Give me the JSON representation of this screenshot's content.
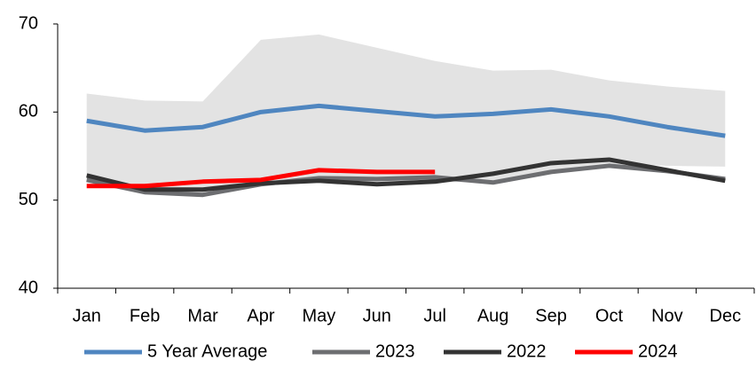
{
  "chart_data": {
    "type": "line",
    "categories": [
      "Jan",
      "Feb",
      "Mar",
      "Apr",
      "May",
      "Jun",
      "Jul",
      "Aug",
      "Sep",
      "Oct",
      "Nov",
      "Dec"
    ],
    "band": {
      "color": "#e3e3e3",
      "upper": [
        62.1,
        61.3,
        61.2,
        68.2,
        68.8,
        67.3,
        65.8,
        64.7,
        64.8,
        63.6,
        62.9,
        62.4
      ],
      "lower": [
        52.3,
        50.9,
        50.6,
        51.8,
        52.2,
        51.7,
        52.0,
        52.1,
        53.1,
        54.1,
        53.9,
        53.8
      ]
    },
    "series": [
      {
        "name": "5 Year Average",
        "color": "#4f86c0",
        "values": [
          59.0,
          57.9,
          58.3,
          60.0,
          60.7,
          60.1,
          59.5,
          59.8,
          60.3,
          59.5,
          58.3,
          57.3
        ]
      },
      {
        "name": "2023",
        "color": "#6d6e71",
        "values": [
          52.3,
          50.9,
          50.6,
          51.8,
          52.5,
          52.4,
          52.6,
          52.0,
          53.2,
          53.9,
          53.3,
          52.4
        ]
      },
      {
        "name": "2022",
        "color": "#333333",
        "values": [
          52.8,
          51.2,
          51.2,
          51.9,
          52.2,
          51.8,
          52.1,
          53.0,
          54.2,
          54.6,
          53.4,
          52.2
        ]
      },
      {
        "name": "2024",
        "color": "#ff0000",
        "values": [
          51.6,
          51.6,
          52.1,
          52.3,
          53.4,
          53.2,
          53.2,
          null,
          null,
          null,
          null,
          null
        ]
      }
    ],
    "ylim": [
      40,
      70
    ],
    "yticks": [
      40,
      50,
      60,
      70
    ],
    "grid": false,
    "legend": "bottom"
  }
}
